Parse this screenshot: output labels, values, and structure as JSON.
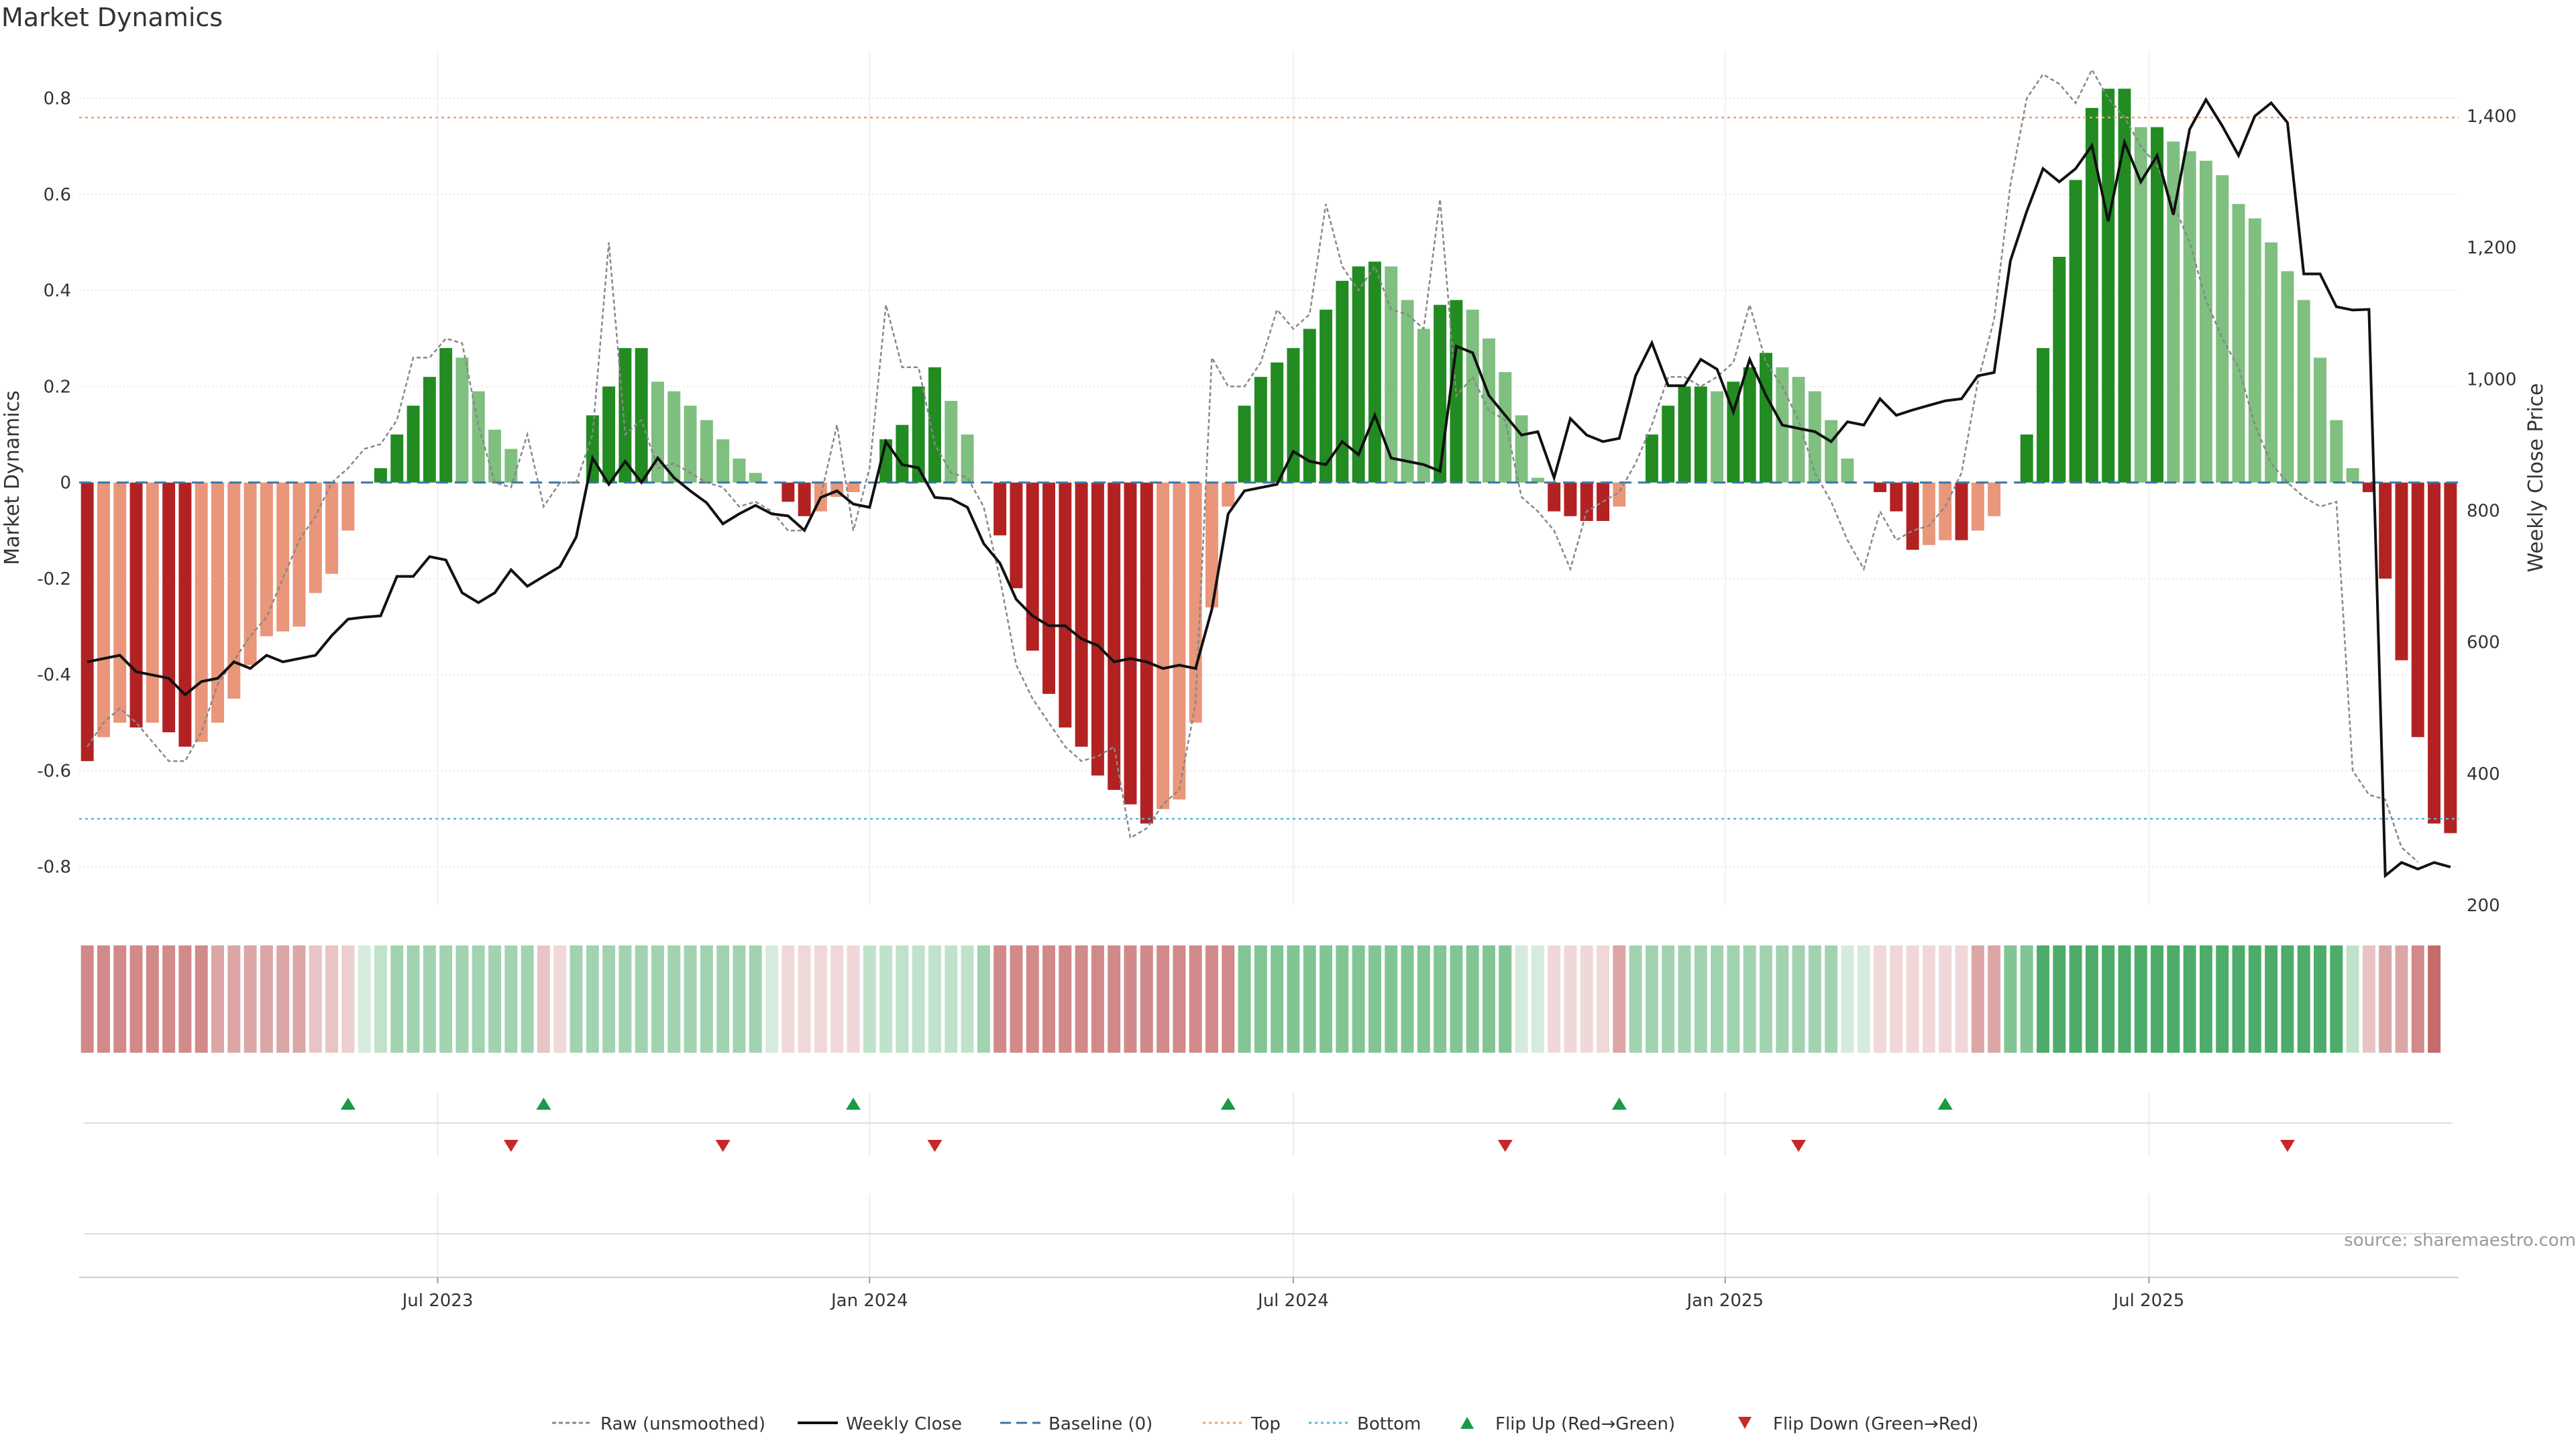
{
  "page": {
    "title": "Market Dynamics"
  },
  "chart_data": {
    "type": "bar",
    "title": "Market Dynamics",
    "ylabel": "Market Dynamics",
    "y2label": "Weekly Close Price",
    "ylim": [
      -0.88,
      0.9
    ],
    "y2lim": [
      200,
      1500
    ],
    "yticks": [
      -0.8,
      -0.6,
      -0.4,
      -0.2,
      0,
      0.2,
      0.4,
      0.6,
      0.8
    ],
    "y2ticks": [
      200,
      400,
      600,
      800,
      1000,
      1200,
      1400
    ],
    "y2ticklabels": [
      "200",
      "400",
      "600",
      "800",
      "1,000",
      "1,200",
      "1,400"
    ],
    "xticks": [
      {
        "label": "Jul 2023",
        "week": 22
      },
      {
        "label": "Jan 2024",
        "week": 48.5
      },
      {
        "label": "Jul 2024",
        "week": 74.5
      },
      {
        "label": "Jan 2025",
        "week": 101
      },
      {
        "label": "Jul 2025",
        "week": 127
      }
    ],
    "x_start": "2023-01-30",
    "x_step": "weekly",
    "top_level": 0.76,
    "bottom_level": -0.7,
    "baseline": 0,
    "series": [
      {
        "name": "Market Dynamics (smoothed)",
        "kind": "bar",
        "values": [
          -0.58,
          -0.53,
          -0.5,
          -0.51,
          -0.5,
          -0.52,
          -0.55,
          -0.54,
          -0.5,
          -0.45,
          -0.38,
          -0.32,
          -0.31,
          -0.3,
          -0.23,
          -0.19,
          -0.1,
          0,
          0.03,
          0.1,
          0.16,
          0.22,
          0.28,
          0.26,
          0.19,
          0.11,
          0.07,
          0,
          0,
          0,
          0,
          0.14,
          0.2,
          0.28,
          0.28,
          0.21,
          0.19,
          0.16,
          0.13,
          0.09,
          0.05,
          0.02,
          0,
          -0.04,
          -0.07,
          -0.06,
          -0.03,
          -0.02,
          0,
          0.09,
          0.12,
          0.2,
          0.24,
          0.17,
          0.1,
          0,
          -0.11,
          -0.22,
          -0.35,
          -0.44,
          -0.51,
          -0.55,
          -0.61,
          -0.64,
          -0.67,
          -0.71,
          -0.68,
          -0.66,
          -0.5,
          -0.26,
          -0.05,
          0.16,
          0.22,
          0.25,
          0.28,
          0.32,
          0.36,
          0.42,
          0.45,
          0.46,
          0.45,
          0.38,
          0.32,
          0.37,
          0.38,
          0.36,
          0.3,
          0.23,
          0.14,
          0.01,
          -0.06,
          -0.07,
          -0.08,
          -0.08,
          -0.05,
          0,
          0.1,
          0.16,
          0.2,
          0.2,
          0.19,
          0.21,
          0.24,
          0.27,
          0.24,
          0.22,
          0.19,
          0.13,
          0.05,
          0,
          -0.02,
          -0.06,
          -0.14,
          -0.13,
          -0.12,
          -0.12,
          -0.1,
          -0.07,
          0,
          0.1,
          0.28,
          0.47,
          0.63,
          0.78,
          0.82,
          0.82,
          0.74,
          0.74,
          0.71,
          0.69,
          0.67,
          0.64,
          0.58,
          0.55,
          0.5,
          0.44,
          0.38,
          0.26,
          0.13,
          0.03,
          -0.02,
          -0.2,
          -0.37,
          -0.53,
          -0.71,
          -0.73
        ]
      },
      {
        "name": "Raw (unsmoothed)",
        "kind": "line",
        "values": [
          -0.55,
          -0.5,
          -0.47,
          -0.5,
          -0.54,
          -0.58,
          -0.58,
          -0.52,
          -0.42,
          -0.37,
          -0.32,
          -0.28,
          -0.2,
          -0.12,
          -0.07,
          0,
          0.03,
          0.07,
          0.08,
          0.13,
          0.26,
          0.26,
          0.3,
          0.29,
          0.12,
          0,
          -0.01,
          0.1,
          -0.05,
          0,
          0,
          0.1,
          0.5,
          0.1,
          0.13,
          0.03,
          0.04,
          0.02,
          0,
          -0.01,
          -0.05,
          -0.04,
          -0.06,
          -0.1,
          -0.1,
          -0.03,
          0.12,
          -0.1,
          0.03,
          0.37,
          0.24,
          0.24,
          0.08,
          0.02,
          0.01,
          -0.05,
          -0.2,
          -0.38,
          -0.45,
          -0.5,
          -0.55,
          -0.58,
          -0.57,
          -0.55,
          -0.74,
          -0.72,
          -0.67,
          -0.64,
          -0.46,
          0.26,
          0.2,
          0.2,
          0.25,
          0.36,
          0.32,
          0.35,
          0.58,
          0.45,
          0.4,
          0.45,
          0.36,
          0.35,
          0.32,
          0.59,
          0.18,
          0.22,
          0.15,
          0.13,
          -0.03,
          -0.06,
          -0.1,
          -0.18,
          -0.06,
          -0.04,
          -0.02,
          0.04,
          0.12,
          0.22,
          0.22,
          0.2,
          0.22,
          0.25,
          0.37,
          0.25,
          0.2,
          0.13,
          0.02,
          -0.04,
          -0.12,
          -0.18,
          -0.06,
          -0.12,
          -0.1,
          -0.09,
          -0.05,
          0.02,
          0.21,
          0.34,
          0.62,
          0.8,
          0.85,
          0.83,
          0.79,
          0.86,
          0.8,
          0.76,
          0.7,
          0.66,
          0.58,
          0.5,
          0.38,
          0.3,
          0.24,
          0.12,
          0.04,
          0,
          -0.03,
          -0.05,
          -0.04,
          -0.6,
          -0.65,
          -0.66,
          -0.76,
          -0.79
        ]
      },
      {
        "name": "Weekly Close",
        "kind": "line",
        "axis": "right",
        "values": [
          570,
          575,
          580,
          555,
          550,
          545,
          520,
          540,
          545,
          570,
          560,
          580,
          570,
          575,
          580,
          610,
          635,
          638,
          640,
          700,
          700,
          730,
          725,
          675,
          660,
          675,
          710,
          685,
          700,
          715,
          760,
          880,
          840,
          875,
          843,
          880,
          850,
          830,
          812,
          780,
          795,
          808,
          795,
          792,
          770,
          820,
          830,
          810,
          805,
          905,
          870,
          865,
          820,
          818,
          805,
          750,
          720,
          665,
          640,
          625,
          625,
          605,
          595,
          570,
          575,
          570,
          560,
          565,
          560,
          650,
          795,
          830,
          835,
          840,
          890,
          875,
          870,
          905,
          885,
          945,
          880,
          875,
          870,
          860,
          1050,
          1040,
          975,
          945,
          915,
          920,
          850,
          940,
          915,
          905,
          910,
          1005,
          1055,
          990,
          990,
          1030,
          1015,
          950,
          1030,
          975,
          930,
          925,
          920,
          905,
          935,
          930,
          970,
          945,
          953,
          960,
          967,
          970,
          1005,
          1010,
          1180,
          1255,
          1320,
          1300,
          1320,
          1355,
          1240,
          1360,
          1300,
          1340,
          1250,
          1380,
          1425,
          1385,
          1340,
          1400,
          1420,
          1390,
          1160,
          1160,
          1110,
          1105,
          1106,
          245,
          265,
          255,
          265,
          258
        ]
      },
      {
        "name": "Baseline (0)",
        "kind": "hline",
        "value": 0
      },
      {
        "name": "Top",
        "kind": "hline",
        "value": 0.76
      },
      {
        "name": "Bottom",
        "kind": "hline",
        "value": -0.7
      },
      {
        "name": "Flip Up (Red→Green)",
        "kind": "marker",
        "weeks": [
          16,
          28,
          47,
          70,
          94,
          114
        ]
      },
      {
        "name": "Flip Down (Green→Red)",
        "kind": "marker",
        "weeks": [
          26,
          39,
          52,
          87,
          105,
          135
        ]
      }
    ],
    "strip_opacity": [
      0.6,
      0.6,
      0.6,
      0.6,
      0.6,
      0.6,
      0.6,
      0.6,
      0.45,
      0.45,
      0.45,
      0.45,
      0.45,
      0.45,
      0.3,
      0.3,
      0.25,
      0.2,
      0.3,
      0.45,
      0.45,
      0.45,
      0.45,
      0.45,
      0.45,
      0.45,
      0.45,
      0.45,
      0.3,
      0.2,
      0.45,
      0.45,
      0.45,
      0.45,
      0.45,
      0.45,
      0.45,
      0.45,
      0.45,
      0.45,
      0.45,
      0.45,
      0.2,
      0.2,
      0.2,
      0.2,
      0.2,
      0.2,
      0.3,
      0.3,
      0.3,
      0.3,
      0.3,
      0.3,
      0.3,
      0.45,
      0.6,
      0.6,
      0.6,
      0.6,
      0.6,
      0.6,
      0.6,
      0.6,
      0.6,
      0.6,
      0.6,
      0.6,
      0.6,
      0.6,
      0.6,
      0.6,
      0.6,
      0.6,
      0.6,
      0.6,
      0.6,
      0.6,
      0.6,
      0.6,
      0.6,
      0.6,
      0.6,
      0.6,
      0.6,
      0.6,
      0.6,
      0.6,
      0.2,
      0.2,
      0.2,
      0.2,
      0.2,
      0.2,
      0.45,
      0.45,
      0.45,
      0.45,
      0.45,
      0.45,
      0.45,
      0.45,
      0.45,
      0.45,
      0.45,
      0.45,
      0.45,
      0.45,
      0.2,
      0.2,
      0.2,
      0.2,
      0.2,
      0.2,
      0.2,
      0.2,
      0.45,
      0.45,
      0.6,
      0.6,
      0.85,
      0.85,
      0.85,
      0.85,
      0.85,
      0.85,
      0.85,
      0.85,
      0.85,
      0.85,
      0.85,
      0.85,
      0.85,
      0.85,
      0.85,
      0.85,
      0.85,
      0.85,
      0.85,
      0.3,
      0.3,
      0.45,
      0.45,
      0.6,
      0.75
    ]
  },
  "legend": {
    "items": [
      {
        "label": "Raw (unsmoothed)",
        "kind": "raw"
      },
      {
        "label": "Weekly Close",
        "kind": "close"
      },
      {
        "label": "Baseline (0)",
        "kind": "baseline"
      },
      {
        "label": "Top",
        "kind": "top"
      },
      {
        "label": "Bottom",
        "kind": "bottom"
      },
      {
        "label": "Flip Up (Red→Green)",
        "kind": "flipup"
      },
      {
        "label": "Flip Down (Green→Red)",
        "kind": "flipdown"
      }
    ]
  },
  "source": "source: sharemaestro.com",
  "colors": {
    "strong_green": "#228b22",
    "light_green": "#7fbf7f",
    "strong_red": "#b22222",
    "light_red": "#e9967a",
    "strip_green": "#2e9e4f",
    "strip_red": "#b23a3a",
    "raw": "#888888",
    "close": "#111111",
    "baseline": "#3b76a8",
    "top": "#f0a070",
    "bottom": "#55b8d8",
    "flip_up": "#1a9a45",
    "flip_down": "#c62828",
    "grid": "#e6e6e6",
    "axis_text": "#333333"
  }
}
